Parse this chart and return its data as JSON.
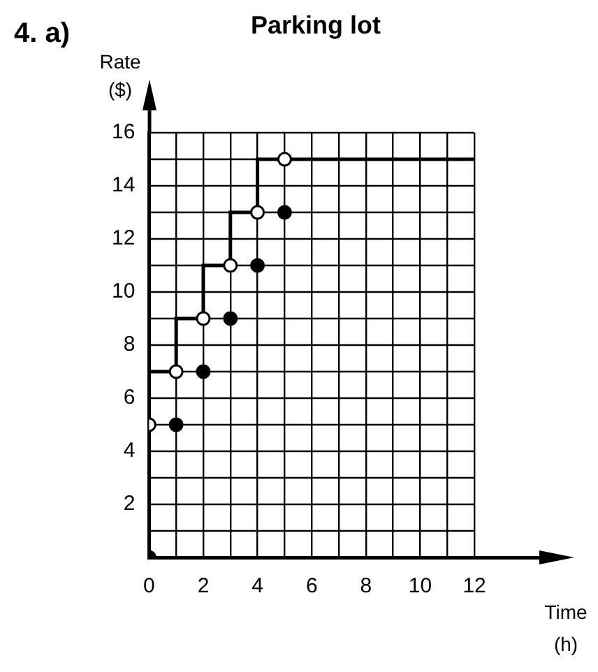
{
  "chart_data": {
    "type": "step",
    "title": "Parking lot",
    "annotations": [
      "4. a)"
    ],
    "xlabel": "Time\n(h)",
    "ylabel": "Rate\n($)",
    "xlim": [
      0,
      14.6
    ],
    "ylim": [
      0,
      16
    ],
    "xticks": [
      0,
      {
        "value": 1,
        "label": null
      },
      2,
      {
        "value": 3,
        "label": null
      },
      4,
      {
        "value": 5,
        "label": null
      },
      6,
      {
        "value": 7,
        "label": null
      },
      8,
      {
        "value": 9,
        "label": null
      },
      10,
      {
        "value": 11,
        "label": null
      },
      12
    ],
    "yticks": [
      {
        "value": 0,
        "label": null
      },
      {
        "value": 1,
        "label": null
      },
      2,
      {
        "value": 3,
        "label": null
      },
      4,
      {
        "value": 5,
        "label": null
      },
      6,
      {
        "value": 7,
        "label": null
      },
      8,
      {
        "value": 9,
        "label": null
      },
      10,
      {
        "value": 11,
        "label": null
      },
      12,
      {
        "value": 13,
        "label": null
      },
      14,
      {
        "value": 15,
        "label": null
      },
      16
    ],
    "grid": true,
    "legend": false,
    "series": [
      {
        "type": "step",
        "color": "#000000",
        "x": [
          0,
          1,
          2,
          3,
          4,
          5,
          12
        ],
        "values": [
          5,
          7,
          9,
          11,
          13,
          15,
          15
        ],
        "marker": "none"
      },
      {
        "type": "scatter",
        "color": "#ffffff",
        "x": [
          0,
          1,
          2,
          3,
          4,
          5
        ],
        "values": [
          5,
          7,
          9,
          11,
          13,
          15
        ],
        "marker": "circle"
      },
      {
        "type": "scatter",
        "color": "#000000",
        "x": [
          0,
          1,
          2,
          3,
          4,
          5
        ],
        "values": [
          0,
          5,
          7,
          9,
          11,
          13
        ],
        "marker": "circle"
      }
    ]
  }
}
